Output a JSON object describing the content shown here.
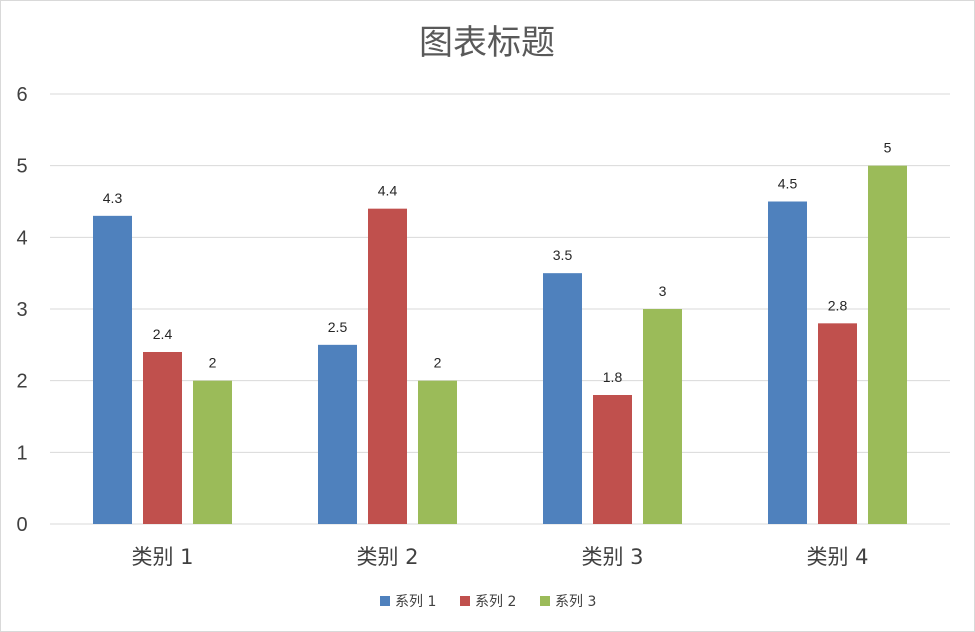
{
  "chart_data": {
    "type": "bar",
    "title": "图表标题",
    "categories": [
      "类别 1",
      "类别 2",
      "类别 3",
      "类别 4"
    ],
    "series": [
      {
        "name": "系列 1",
        "values": [
          4.3,
          2.5,
          3.5,
          4.5
        ],
        "color": "#4f81bd"
      },
      {
        "name": "系列 2",
        "values": [
          2.4,
          4.4,
          1.8,
          2.8
        ],
        "color": "#c0504d"
      },
      {
        "name": "系列 3",
        "values": [
          2,
          2,
          3,
          5
        ],
        "color": "#9bbb59"
      }
    ],
    "ylim": [
      0,
      6
    ],
    "yticks": [
      "0",
      "1",
      "2",
      "3",
      "4",
      "5",
      "6"
    ],
    "grid": true,
    "legend": "bottom",
    "data_labels": true
  }
}
